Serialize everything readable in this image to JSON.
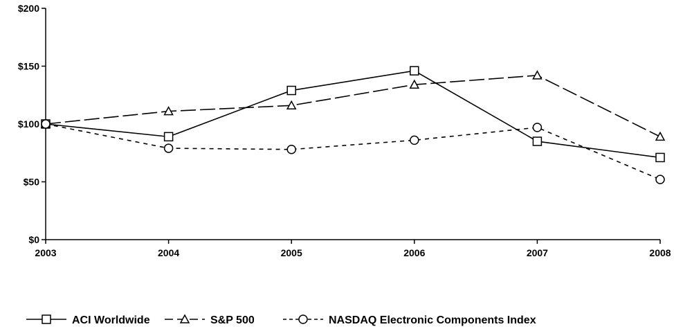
{
  "chart_data": {
    "type": "line",
    "title": "",
    "xlabel": "",
    "ylabel": "",
    "x": [
      "2003",
      "2004",
      "2005",
      "2006",
      "2007",
      "2008"
    ],
    "ylim": [
      0,
      200
    ],
    "yticks": [
      0,
      50,
      100,
      150,
      200
    ],
    "ytick_labels": [
      "$0",
      "$50",
      "$100",
      "$150",
      "$200"
    ],
    "grid": false,
    "legend_position": "bottom",
    "series": [
      {
        "name": "ACI Worldwide",
        "values": [
          100,
          89,
          129,
          146,
          85,
          71
        ],
        "marker": "square",
        "dash": "solid",
        "color": "#000000"
      },
      {
        "name": "S&P 500",
        "values": [
          100,
          111,
          116,
          134,
          142,
          89
        ],
        "marker": "triangle",
        "dash": "long-dash",
        "color": "#000000"
      },
      {
        "name": "NASDAQ Electronic Components Index",
        "values": [
          100,
          79,
          78,
          86,
          97,
          52
        ],
        "marker": "circle",
        "dash": "short-dash",
        "color": "#000000"
      }
    ]
  }
}
